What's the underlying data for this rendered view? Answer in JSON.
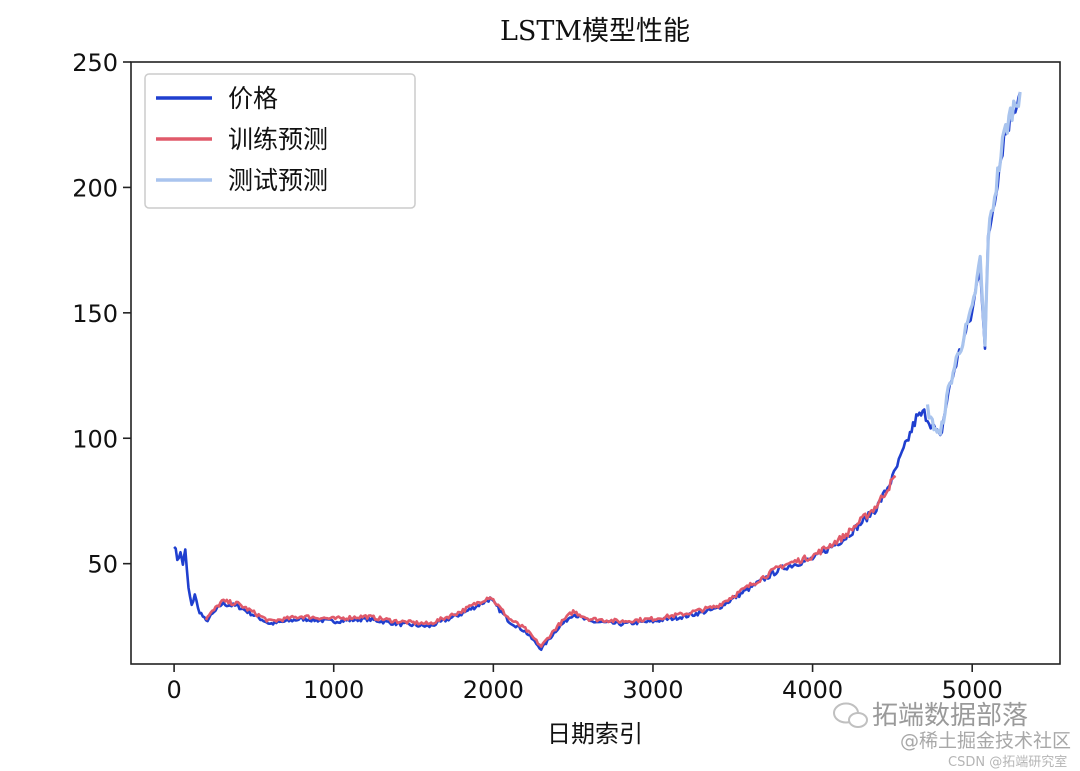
{
  "chart_data": {
    "type": "line",
    "title": "LSTM模型性能",
    "xlabel": "日期索引",
    "ylabel": "",
    "xlim": [
      -270,
      5550
    ],
    "ylim": [
      10,
      250
    ],
    "xticks": [
      0,
      1000,
      2000,
      3000,
      4000,
      5000
    ],
    "yticks": [
      50,
      100,
      150,
      200,
      250
    ],
    "grid": false,
    "legend_position": "top-left",
    "colors": {
      "price": "#1f3fcf",
      "train": "#e05a6a",
      "test": "#a9c4ee"
    },
    "series": [
      {
        "name": "价格",
        "x": [
          0,
          20,
          40,
          55,
          70,
          90,
          110,
          130,
          150,
          170,
          190,
          200,
          300,
          400,
          600,
          800,
          1000,
          1200,
          1400,
          1600,
          1800,
          1980,
          2100,
          2200,
          2300,
          2400,
          2500,
          2600,
          2800,
          3000,
          3200,
          3400,
          3600,
          3800,
          4000,
          4200,
          4400,
          4500,
          4550,
          4600,
          4650,
          4700,
          4750,
          4800,
          4850,
          4900,
          4950,
          5000,
          5050,
          5080,
          5100,
          5150,
          5200,
          5250,
          5300
        ],
        "values": [
          58,
          52,
          54,
          50,
          55,
          40,
          33,
          38,
          32,
          30,
          28,
          27,
          34,
          33,
          26,
          28,
          27,
          28,
          26,
          25,
          30,
          36,
          27,
          23,
          16,
          24,
          30,
          27,
          26,
          27,
          29,
          32,
          40,
          48,
          52,
          60,
          72,
          84,
          92,
          100,
          108,
          110,
          105,
          100,
          118,
          130,
          140,
          150,
          170,
          135,
          180,
          200,
          220,
          230,
          238
        ]
      },
      {
        "name": "训练预测",
        "x": [
          200,
          300,
          400,
          600,
          800,
          1000,
          1200,
          1400,
          1600,
          1800,
          1980,
          2100,
          2200,
          2300,
          2400,
          2500,
          2600,
          2800,
          3000,
          3200,
          3400,
          3600,
          3800,
          4000,
          4200,
          4400,
          4520
        ],
        "values": [
          28,
          35,
          34,
          27,
          29,
          28,
          29,
          27,
          26,
          31,
          37,
          28,
          24,
          17,
          25,
          31,
          28,
          27,
          28,
          30,
          33,
          41,
          49,
          53,
          61,
          73,
          85
        ]
      },
      {
        "name": "测试预测",
        "x": [
          4720,
          4750,
          4800,
          4850,
          4900,
          4950,
          5000,
          5050,
          5080,
          5100,
          5150,
          5200,
          5250,
          5300
        ],
        "values": [
          112,
          106,
          101,
          119,
          131,
          141,
          151,
          171,
          136,
          181,
          201,
          221,
          231,
          238
        ]
      }
    ]
  },
  "watermark": {
    "line1": "拓端数据部落",
    "line2": "@稀土掘金技术社区",
    "line3": "CSDN @拓端研究室"
  }
}
